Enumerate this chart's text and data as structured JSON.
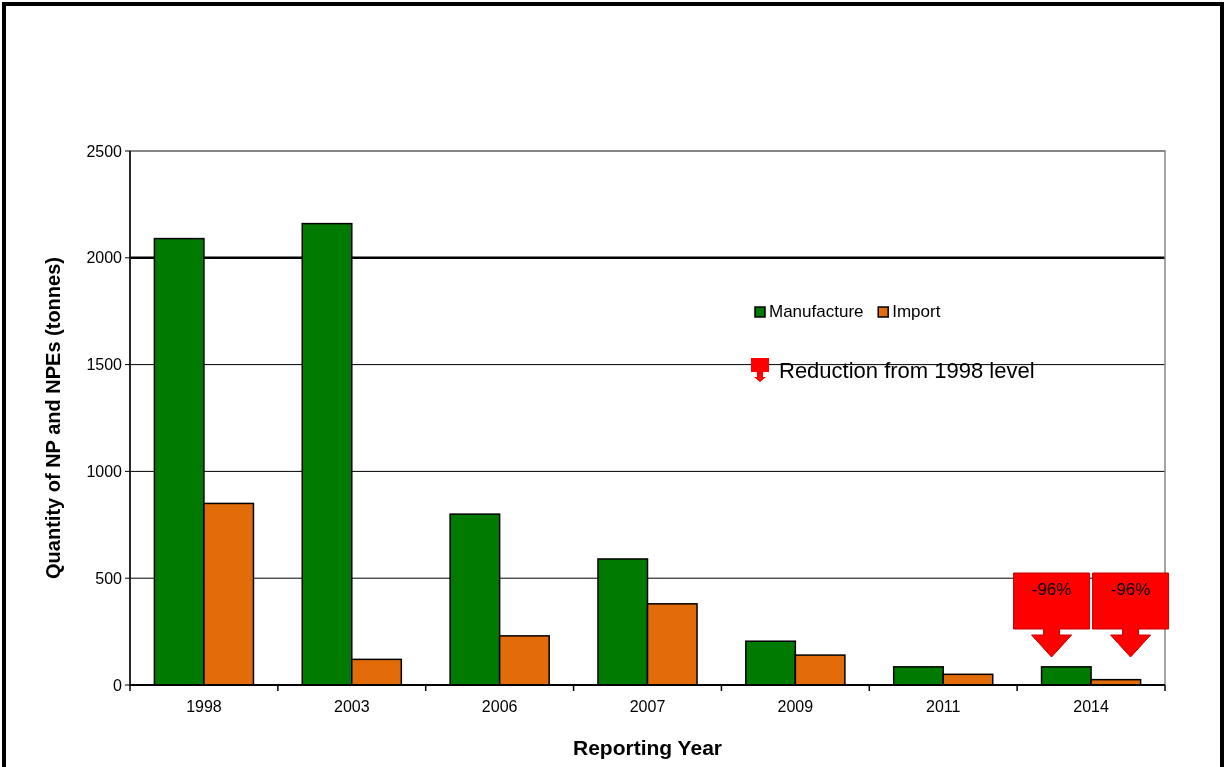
{
  "chart_data": {
    "type": "bar",
    "xlabel": "Reporting Year",
    "ylabel": "Quantity of NP and NPEs (tonnes)",
    "categories": [
      "1998",
      "2003",
      "2006",
      "2007",
      "2009",
      "2011",
      "2014"
    ],
    "series": [
      {
        "name": "Manufacture",
        "color": "#007a00",
        "values": [
          2090,
          2160,
          800,
          590,
          205,
          85,
          85
        ]
      },
      {
        "name": "Import",
        "color": "#e36c0a",
        "values": [
          850,
          120,
          230,
          380,
          140,
          50,
          25
        ]
      }
    ],
    "ylim": [
      0,
      2500
    ],
    "yticks": [
      0,
      500,
      1000,
      1500,
      2000,
      2500
    ],
    "grid": "y",
    "legend": "top right",
    "annotations": [
      "Reduction from 1998 level",
      "-96%",
      "-96%"
    ],
    "ref_lines": [
      {
        "axis": "y",
        "value": 2000,
        "color": "#000000"
      }
    ]
  }
}
